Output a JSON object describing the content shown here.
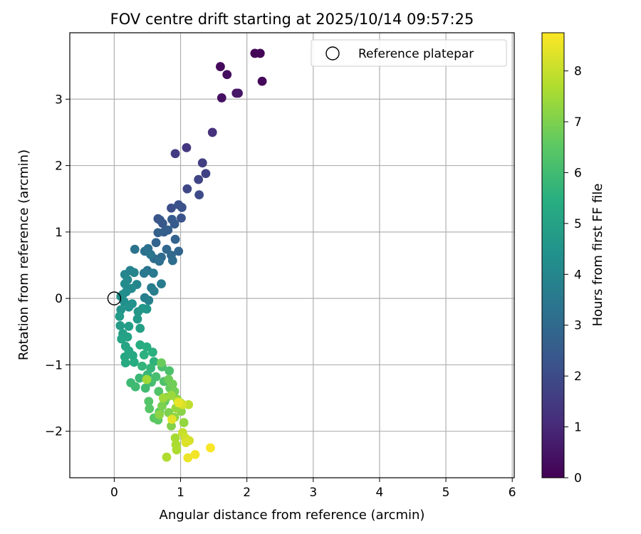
{
  "chart_data": {
    "type": "scatter",
    "title": "FOV centre drift starting at 2025/10/14 09:57:25",
    "xlabel": "Angular distance from reference (arcmin)",
    "ylabel": "Rotation from reference (arcmin)",
    "xlim": [
      -0.67,
      6.03
    ],
    "ylim": [
      -2.7,
      4.0
    ],
    "xticks": [
      0,
      1,
      2,
      3,
      4,
      5,
      6
    ],
    "yticks": [
      -2,
      -1,
      0,
      1,
      2,
      3
    ],
    "grid": true,
    "legend": {
      "placement": "top-right",
      "entries": [
        "Reference platepar"
      ]
    },
    "reference_point": {
      "x": 0,
      "y": 0,
      "label": "Reference platepar"
    },
    "colorbar": {
      "label": "Hours from first FF file",
      "colormap": "viridis",
      "range": [
        0,
        8.75
      ],
      "ticks": [
        0,
        1,
        2,
        3,
        4,
        5,
        6,
        7,
        8
      ]
    },
    "points": [
      [
        2.12,
        3.69,
        0.05
      ],
      [
        2.2,
        3.69,
        0.1
      ],
      [
        2.23,
        3.27,
        0.15
      ],
      [
        1.6,
        3.49,
        0.2
      ],
      [
        1.7,
        3.37,
        0.3
      ],
      [
        1.62,
        3.02,
        0.4
      ],
      [
        1.84,
        3.09,
        0.5
      ],
      [
        1.87,
        3.09,
        0.55
      ],
      [
        1.48,
        2.5,
        1.2
      ],
      [
        1.09,
        2.27,
        1.4
      ],
      [
        0.92,
        2.18,
        1.5
      ],
      [
        1.33,
        2.04,
        1.6
      ],
      [
        1.38,
        1.88,
        1.7
      ],
      [
        1.27,
        1.79,
        1.8
      ],
      [
        1.1,
        1.65,
        1.9
      ],
      [
        1.28,
        1.56,
        2.0
      ],
      [
        0.86,
        1.36,
        2.1
      ],
      [
        0.97,
        1.41,
        2.15
      ],
      [
        1.02,
        1.37,
        2.2
      ],
      [
        1.01,
        1.21,
        2.25
      ],
      [
        0.66,
        1.2,
        2.3
      ],
      [
        0.69,
        1.18,
        2.35
      ],
      [
        0.73,
        1.13,
        2.4
      ],
      [
        0.91,
        1.12,
        2.45
      ],
      [
        0.87,
        1.19,
        2.5
      ],
      [
        0.75,
        1.0,
        2.55
      ],
      [
        0.81,
        1.03,
        2.6
      ],
      [
        0.66,
        0.99,
        2.7
      ],
      [
        0.63,
        0.84,
        2.8
      ],
      [
        0.92,
        0.89,
        2.75
      ],
      [
        0.97,
        0.71,
        2.85
      ],
      [
        0.79,
        0.74,
        2.9
      ],
      [
        0.86,
        0.65,
        2.95
      ],
      [
        0.71,
        0.62,
        3.0
      ],
      [
        0.6,
        0.6,
        3.05
      ],
      [
        0.88,
        0.57,
        3.1
      ],
      [
        0.68,
        0.56,
        3.15
      ],
      [
        0.51,
        0.75,
        3.2
      ],
      [
        0.46,
        0.71,
        3.25
      ],
      [
        0.31,
        0.74,
        3.3
      ],
      [
        0.55,
        0.66,
        3.35
      ],
      [
        0.5,
        0.42,
        3.4
      ],
      [
        0.45,
        0.38,
        3.5
      ],
      [
        0.59,
        0.38,
        3.55
      ],
      [
        0.71,
        0.22,
        3.6
      ],
      [
        0.56,
        0.16,
        3.65
      ],
      [
        0.6,
        0.11,
        3.7
      ],
      [
        0.46,
        0.01,
        3.75
      ],
      [
        0.52,
        -0.03,
        3.8
      ],
      [
        0.24,
        0.42,
        3.85
      ],
      [
        0.3,
        0.39,
        3.9
      ],
      [
        0.34,
        0.21,
        3.95
      ],
      [
        0.16,
        0.36,
        4.0
      ],
      [
        0.2,
        0.28,
        4.05
      ],
      [
        0.26,
        0.15,
        4.1
      ],
      [
        0.16,
        0.22,
        4.15
      ],
      [
        0.18,
        0.1,
        4.2
      ],
      [
        0.13,
        0.06,
        4.25
      ],
      [
        0.1,
        0.03,
        4.3
      ],
      [
        0.15,
        -0.05,
        4.35
      ],
      [
        0.22,
        -0.13,
        4.4
      ],
      [
        0.27,
        -0.08,
        4.45
      ],
      [
        0.1,
        -0.17,
        4.5
      ],
      [
        0.43,
        -0.15,
        4.55
      ],
      [
        0.49,
        -0.16,
        4.6
      ],
      [
        0.36,
        -0.2,
        4.65
      ],
      [
        0.35,
        -0.31,
        4.7
      ],
      [
        0.08,
        -0.27,
        4.75
      ],
      [
        0.09,
        -0.41,
        4.8
      ],
      [
        0.22,
        -0.42,
        4.85
      ],
      [
        0.39,
        -0.45,
        4.9
      ],
      [
        0.13,
        -0.53,
        4.95
      ],
      [
        0.2,
        -0.58,
        5.0
      ],
      [
        0.11,
        -0.61,
        5.05
      ],
      [
        0.17,
        -0.72,
        5.1
      ],
      [
        0.16,
        -0.88,
        5.15
      ],
      [
        0.22,
        -0.79,
        5.2
      ],
      [
        0.28,
        -0.86,
        5.25
      ],
      [
        0.17,
        -0.97,
        5.3
      ],
      [
        0.3,
        -0.96,
        5.35
      ],
      [
        0.39,
        -0.7,
        5.4
      ],
      [
        0.49,
        -0.73,
        5.45
      ],
      [
        0.58,
        -0.81,
        5.5
      ],
      [
        0.45,
        -0.85,
        5.55
      ],
      [
        0.6,
        -0.95,
        5.6
      ],
      [
        0.42,
        -1.02,
        5.7
      ],
      [
        0.55,
        -1.05,
        5.75
      ],
      [
        0.5,
        -1.15,
        5.8
      ],
      [
        0.38,
        -1.2,
        5.85
      ],
      [
        0.25,
        -1.27,
        5.9
      ],
      [
        0.32,
        -1.33,
        5.95
      ],
      [
        0.47,
        -1.35,
        6.0
      ],
      [
        0.56,
        -1.26,
        6.05
      ],
      [
        0.63,
        -1.18,
        6.1
      ],
      [
        0.72,
        -1.03,
        6.15
      ],
      [
        0.83,
        -1.09,
        6.2
      ],
      [
        0.75,
        -1.25,
        6.25
      ],
      [
        0.67,
        -1.4,
        6.3
      ],
      [
        0.52,
        -1.55,
        6.35
      ],
      [
        0.53,
        -1.66,
        6.4
      ],
      [
        0.6,
        -1.8,
        6.45
      ],
      [
        0.66,
        -1.83,
        6.5
      ],
      [
        0.68,
        -1.71,
        6.55
      ],
      [
        0.76,
        -1.55,
        6.6
      ],
      [
        0.84,
        -1.35,
        6.65
      ],
      [
        0.71,
        -0.97,
        6.7
      ],
      [
        0.82,
        -1.22,
        6.75
      ],
      [
        0.88,
        -1.29,
        6.8
      ],
      [
        0.91,
        -1.4,
        6.85
      ],
      [
        0.79,
        -1.49,
        6.9
      ],
      [
        0.72,
        -1.62,
        6.95
      ],
      [
        0.82,
        -1.72,
        7.0
      ],
      [
        0.86,
        -1.92,
        7.05
      ],
      [
        0.95,
        -1.52,
        7.1
      ],
      [
        1.01,
        -1.7,
        7.15
      ],
      [
        0.68,
        -1.75,
        7.2
      ],
      [
        0.91,
        -1.79,
        7.25
      ],
      [
        1.05,
        -1.87,
        7.3
      ],
      [
        0.93,
        -1.65,
        7.35
      ],
      [
        0.86,
        -1.46,
        7.4
      ],
      [
        0.74,
        -1.5,
        7.45
      ],
      [
        0.49,
        -1.22,
        7.5
      ],
      [
        0.92,
        -2.1,
        7.55
      ],
      [
        0.93,
        -2.2,
        7.6
      ],
      [
        0.94,
        -2.28,
        7.65
      ],
      [
        0.79,
        -2.39,
        7.7
      ],
      [
        1.01,
        -1.58,
        7.75
      ],
      [
        0.96,
        -1.55,
        7.8
      ],
      [
        1.12,
        -1.6,
        7.9
      ],
      [
        1.03,
        -2.02,
        8.0
      ],
      [
        1.07,
        -2.1,
        8.1
      ],
      [
        1.13,
        -2.14,
        8.2
      ],
      [
        1.08,
        -2.17,
        8.3
      ],
      [
        0.87,
        -1.82,
        8.4
      ],
      [
        1.11,
        -2.4,
        8.5
      ],
      [
        1.22,
        -2.35,
        8.6
      ],
      [
        1.45,
        -2.25,
        8.7
      ],
      [
        1.03,
        -1.6,
        8.2
      ],
      [
        0.97,
        -1.57,
        8.45
      ]
    ]
  }
}
